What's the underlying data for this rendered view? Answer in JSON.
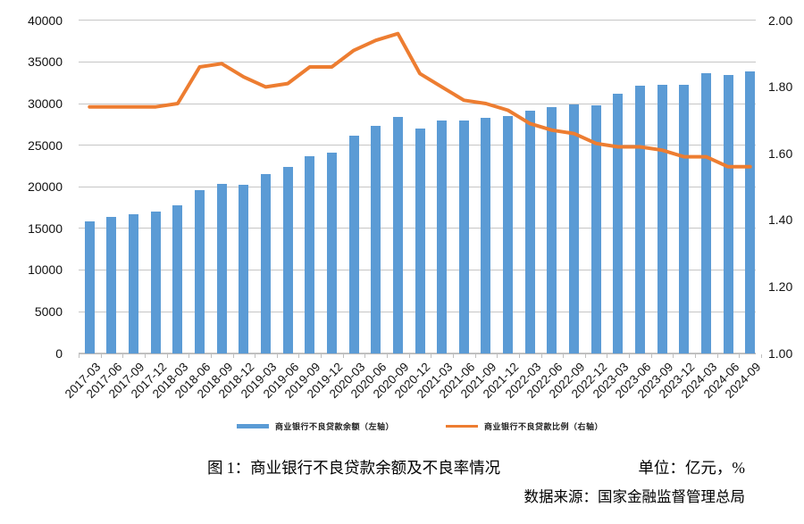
{
  "chart_data": {
    "type": "bar",
    "title": "",
    "categories": [
      "2017-03",
      "2017-06",
      "2017-09",
      "2017-12",
      "2018-03",
      "2018-06",
      "2018-09",
      "2018-12",
      "2019-03",
      "2019-06",
      "2019-09",
      "2019-12",
      "2020-03",
      "2020-06",
      "2020-09",
      "2020-12",
      "2021-03",
      "2021-06",
      "2021-09",
      "2021-12",
      "2022-03",
      "2022-06",
      "2022-09",
      "2022-12",
      "2023-03",
      "2023-06",
      "2023-09",
      "2023-12",
      "2024-03",
      "2024-06",
      "2024-09"
    ],
    "series": [
      {
        "name": "商业银行不良贷款余额（左轴）",
        "type": "bar",
        "axis": "left",
        "color": "#5B9BD5",
        "values": [
          15795,
          16358,
          16704,
          17057,
          17742,
          19571,
          20322,
          20254,
          21571,
          22352,
          23672,
          24135,
          26121,
          27364,
          28350,
          27015,
          27909,
          27911,
          28331,
          28470,
          29113,
          29541,
          29912,
          29829,
          31201,
          32169,
          32264,
          32263,
          33674,
          33417,
          33837
        ]
      },
      {
        "name": "商业银行不良贷款比例（右轴）",
        "type": "line",
        "axis": "right",
        "color": "#ED7D31",
        "values": [
          1.74,
          1.74,
          1.74,
          1.74,
          1.75,
          1.86,
          1.87,
          1.83,
          1.8,
          1.81,
          1.86,
          1.86,
          1.91,
          1.94,
          1.96,
          1.84,
          1.8,
          1.76,
          1.75,
          1.73,
          1.69,
          1.67,
          1.66,
          1.63,
          1.62,
          1.62,
          1.61,
          1.59,
          1.59,
          1.56,
          1.56
        ]
      }
    ],
    "left_axis": {
      "min": 0,
      "max": 40000,
      "tick_interval": 5000,
      "tick_labels": [
        "0",
        "5000",
        "10000",
        "15000",
        "20000",
        "25000",
        "30000",
        "35000",
        "40000"
      ]
    },
    "right_axis": {
      "min": 1.0,
      "max": 2.0,
      "label_interval": 0.2,
      "tick_labels": [
        "1.00",
        "1.20",
        "1.40",
        "1.60",
        "1.80",
        "2.00"
      ]
    },
    "grid": true,
    "legend_position": "bottom"
  },
  "caption": {
    "title": "图 1：商业银行不良贷款余额及不良率情况",
    "unit": "单位：亿元，%",
    "source": "数据来源：国家金融监督管理总局"
  }
}
